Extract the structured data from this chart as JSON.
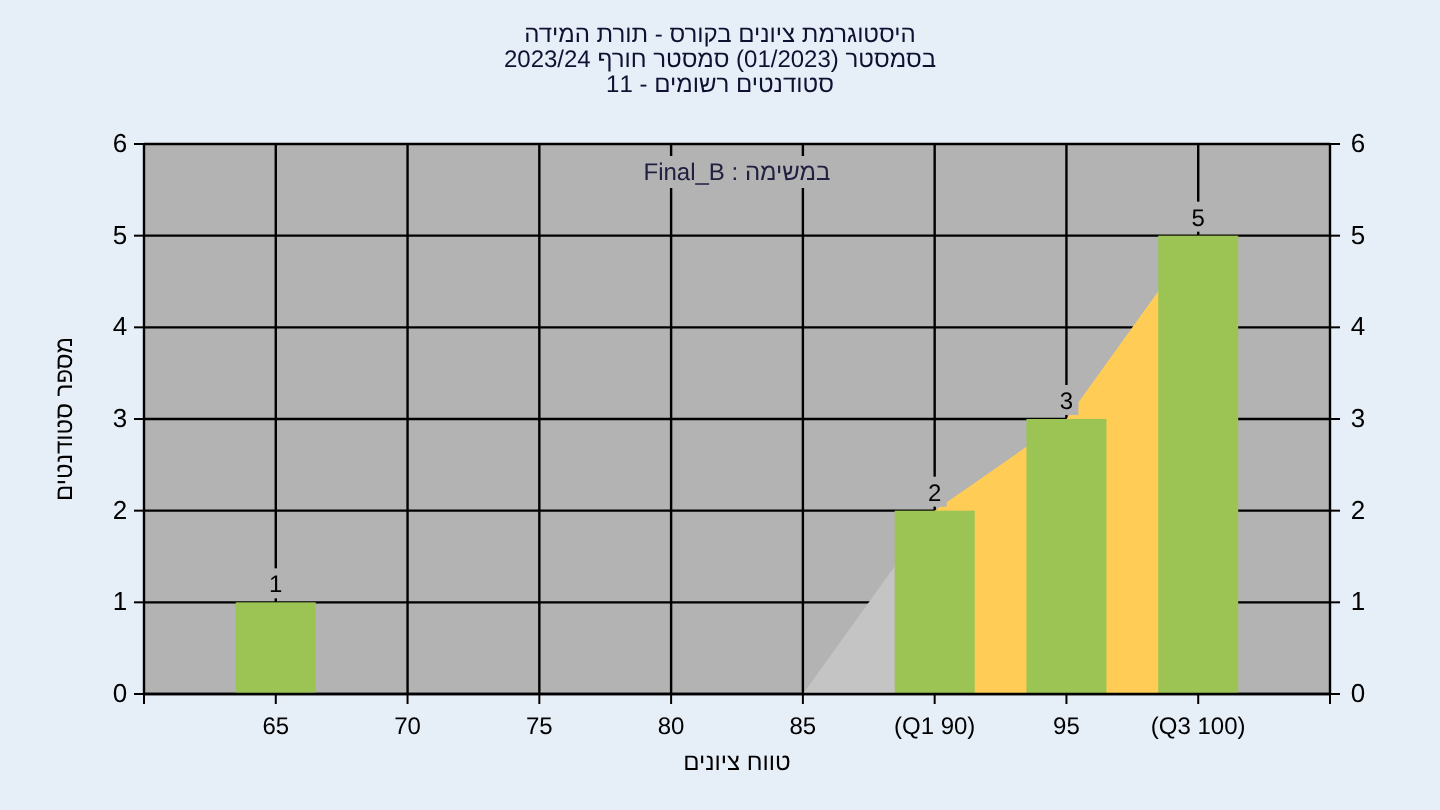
{
  "chart_data": {
    "type": "bar",
    "title": "היסטוגרמת ציונים בקורס - תורת המידה",
    "subtitle": "בסמסטר (01/2023) סמסטר חורף 2023/24\nסטודנטים רשומים - 11",
    "xlabel": "טווח ציונים",
    "ylabel": "מספר סטודנטים",
    "annotations": [
      "במשימה : Final_B"
    ],
    "categories": [
      "65",
      "70",
      "75",
      "80",
      "85",
      "(Q1 90)",
      "95",
      "(Q3 100)"
    ],
    "series": [
      {
        "type": "area",
        "color": "#c4c4c4",
        "values": [
          null,
          null,
          null,
          null,
          0,
          2,
          null,
          null
        ]
      },
      {
        "type": "area",
        "color": "#ffcc55",
        "values": [
          null,
          null,
          null,
          null,
          null,
          2,
          3,
          5
        ]
      },
      {
        "color": "#9cc455",
        "values": [
          1,
          0,
          0,
          0,
          0,
          2,
          3,
          5
        ],
        "value_labels": [
          "1",
          null,
          null,
          null,
          null,
          "2",
          "3",
          "5"
        ]
      }
    ],
    "ylim": [
      0,
      6
    ],
    "yticks": [
      0,
      1,
      2,
      3,
      4,
      5,
      6
    ],
    "y2lim": [
      0,
      6
    ],
    "y2ticks": [
      0,
      1,
      2,
      3,
      4,
      5,
      6
    ],
    "grid": true
  }
}
